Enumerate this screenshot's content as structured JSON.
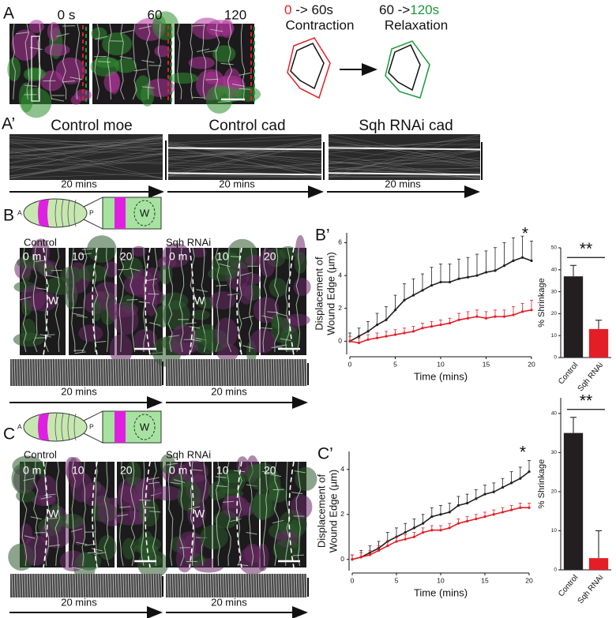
{
  "panel_a": {
    "label": "A",
    "times": [
      "0 s",
      "60",
      "120"
    ],
    "contraction": {
      "from": "0",
      "to": " -> 60s",
      "caption": "Contraction"
    },
    "relaxation": {
      "from": "60 ->",
      "to": "120s",
      "caption": "Relaxation"
    }
  },
  "panel_a_prime": {
    "label": "A’",
    "titles": [
      "Control moe",
      "Control cad",
      "Sqh RNAi cad"
    ],
    "durations": [
      "20 mins",
      "20 mins",
      "20 mins"
    ]
  },
  "panel_b": {
    "label": "B",
    "embryo": {
      "anterior": "A",
      "posterior": "P",
      "wound": "W"
    },
    "groups": [
      {
        "name": "Control",
        "times": [
          "0 m",
          "10",
          "20"
        ],
        "wound": "W",
        "duration": "20 mins"
      },
      {
        "name": "Sqh RNAi",
        "times": [
          "0 m",
          "10",
          "20"
        ],
        "wound": "W",
        "duration": "20 mins"
      }
    ]
  },
  "panel_c": {
    "label": "C",
    "embryo": {
      "anterior": "A",
      "posterior": "P",
      "wound": "W"
    },
    "groups": [
      {
        "name": "Control",
        "times": [
          "0 m",
          "10",
          "20"
        ],
        "wound": "W",
        "duration": "20 mins"
      },
      {
        "name": "Sqh RNAi",
        "times": [
          "0 m",
          "10",
          "20"
        ],
        "wound": "W",
        "duration": "20 mins"
      }
    ]
  },
  "chart_data": [
    {
      "type": "line",
      "panel_label": "B’",
      "ylabel": [
        "Displacement of",
        "Wound Edge (µm)"
      ],
      "xlabel": "Time (mins)",
      "annotation": "*",
      "x": [
        0,
        1,
        2,
        3,
        4,
        5,
        6,
        7,
        8,
        9,
        10,
        11,
        12,
        13,
        14,
        15,
        16,
        17,
        18,
        19,
        20
      ],
      "xlim": [
        0,
        20
      ],
      "xticks": [
        0,
        5,
        10,
        15,
        20
      ],
      "ylim": [
        -0.8,
        6.6
      ],
      "yticks": [
        0,
        2,
        4,
        6
      ],
      "series": [
        {
          "color": "#231f20",
          "values": [
            0,
            0.3,
            0.6,
            1.0,
            1.3,
            1.9,
            2.5,
            2.8,
            3.1,
            3.4,
            3.6,
            3.6,
            3.8,
            3.9,
            4.0,
            4.2,
            4.3,
            4.6,
            4.9,
            5.1,
            4.9
          ],
          "errors": [
            0.5,
            0.5,
            0.6,
            0.7,
            0.8,
            0.9,
            1.0,
            1.0,
            1.0,
            1.1,
            1.1,
            1.1,
            1.2,
            1.2,
            1.3,
            1.3,
            1.4,
            1.4,
            1.4,
            1.3,
            1.2
          ]
        },
        {
          "color": "#e41e26",
          "values": [
            0,
            -0.1,
            0.1,
            0.2,
            0.3,
            0.4,
            0.5,
            0.6,
            0.8,
            0.9,
            1.0,
            1.1,
            1.3,
            1.4,
            1.5,
            1.4,
            1.5,
            1.5,
            1.6,
            1.8,
            1.9
          ],
          "errors": [
            0.3,
            0.3,
            0.3,
            0.3,
            0.3,
            0.3,
            0.3,
            0.3,
            0.3,
            0.3,
            0.3,
            0.3,
            0.4,
            0.4,
            0.4,
            0.4,
            0.4,
            0.4,
            0.5,
            0.5,
            0.6
          ]
        }
      ]
    },
    {
      "type": "bar",
      "ylabel": "% Shrinkage",
      "annotation": "**",
      "categories": [
        "Control",
        "Sqh RNAi"
      ],
      "values": [
        37,
        13
      ],
      "errors": [
        5,
        4
      ],
      "colors": [
        "#231f20",
        "#e41e26"
      ],
      "ylim": [
        0,
        50
      ],
      "yticks": [
        0,
        10,
        20,
        30,
        40,
        50
      ]
    },
    {
      "type": "line",
      "panel_label": "C’",
      "ylabel": [
        "Displacement of",
        "Wound Edge (µm)"
      ],
      "xlabel": "Time (mins)",
      "annotation": "*",
      "x": [
        0,
        1,
        2,
        3,
        4,
        5,
        6,
        7,
        8,
        9,
        10,
        11,
        12,
        13,
        14,
        15,
        16,
        17,
        18,
        19,
        20
      ],
      "xlim": [
        0,
        20
      ],
      "xticks": [
        0,
        5,
        10,
        15,
        20
      ],
      "ylim": [
        -0.5,
        4.8
      ],
      "yticks": [
        0,
        2,
        4
      ],
      "series": [
        {
          "color": "#231f20",
          "values": [
            0,
            0.1,
            0.3,
            0.5,
            0.8,
            1.0,
            1.2,
            1.4,
            1.6,
            1.9,
            2.0,
            2.1,
            2.4,
            2.5,
            2.7,
            2.9,
            3.0,
            3.2,
            3.4,
            3.6,
            3.9
          ],
          "errors": [
            0.2,
            0.3,
            0.3,
            0.3,
            0.4,
            0.4,
            0.4,
            0.4,
            0.4,
            0.4,
            0.4,
            0.4,
            0.4,
            0.4,
            0.4,
            0.4,
            0.4,
            0.4,
            0.5,
            0.5,
            0.5
          ]
        },
        {
          "color": "#e41e26",
          "values": [
            0,
            0.1,
            0.2,
            0.4,
            0.6,
            0.8,
            0.9,
            1.0,
            1.2,
            1.3,
            1.3,
            1.4,
            1.6,
            1.7,
            1.8,
            1.9,
            2.0,
            2.1,
            2.2,
            2.3,
            2.3
          ],
          "errors": [
            0.2,
            0.2,
            0.2,
            0.2,
            0.2,
            0.2,
            0.2,
            0.2,
            0.2,
            0.2,
            0.2,
            0.2,
            0.2,
            0.2,
            0.2,
            0.2,
            0.2,
            0.2,
            0.2,
            0.2,
            0.2
          ]
        }
      ]
    },
    {
      "type": "bar",
      "ylabel": "% Shrinkage",
      "annotation": "**",
      "categories": [
        "Control",
        "Sqh RNAi"
      ],
      "values": [
        35,
        3
      ],
      "errors": [
        4,
        7
      ],
      "colors": [
        "#231f20",
        "#e41e26"
      ],
      "ylim": [
        0,
        44
      ],
      "yticks": [
        0,
        10,
        20,
        30,
        40
      ]
    }
  ]
}
